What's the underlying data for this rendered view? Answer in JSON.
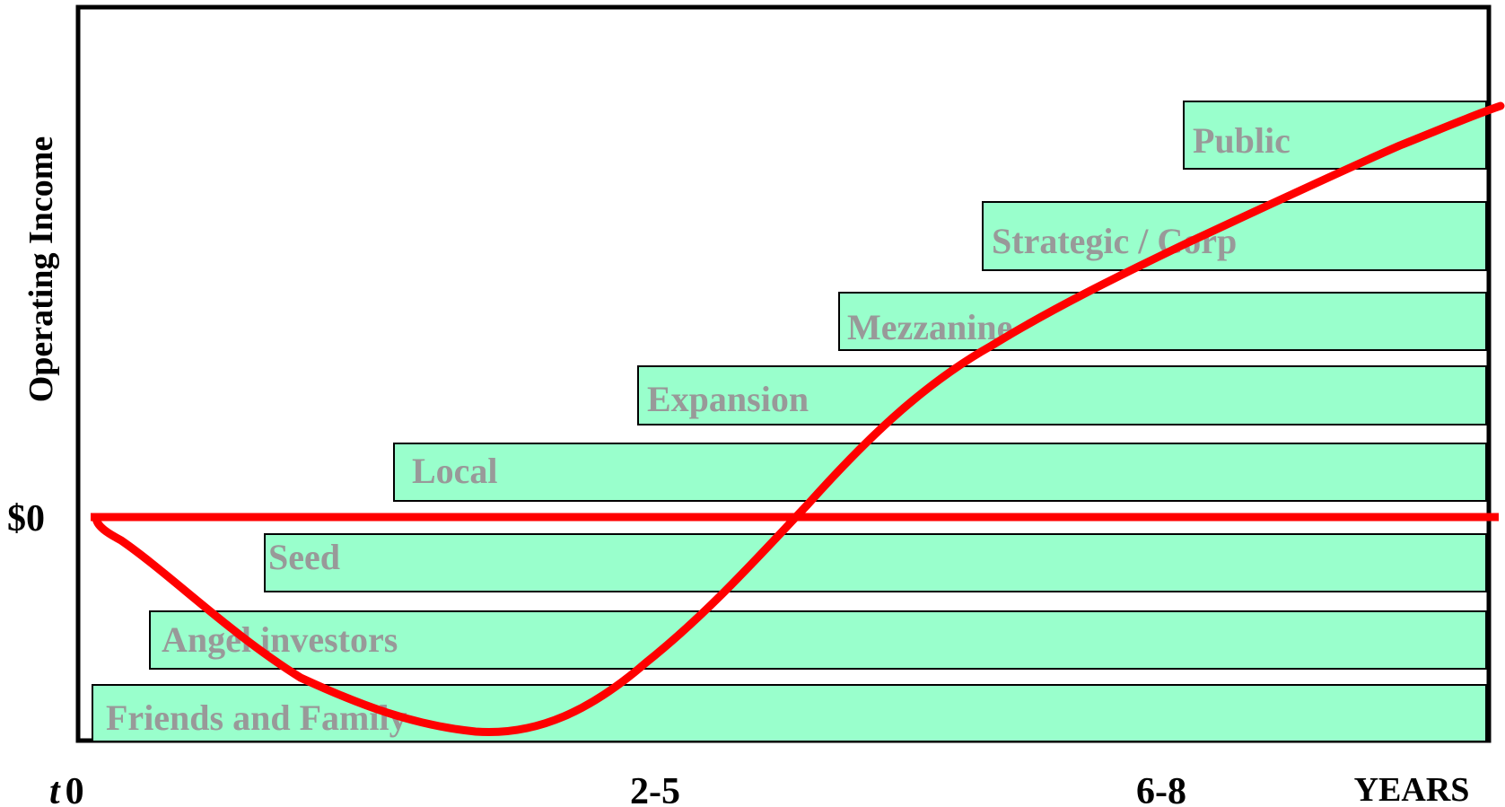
{
  "colors": {
    "bar_fill": "#99ffcc",
    "bar_text": "#999999",
    "curve": "#ff0000",
    "frame": "#000000"
  },
  "axes": {
    "y_label": "Operating Income",
    "zero_label": "$0",
    "x_start_italic": "t",
    "x_start_number": "0",
    "x_mid": "2-5",
    "x_late": "6-8",
    "x_end": "YEARS"
  },
  "stages": [
    {
      "label": "Public"
    },
    {
      "label": "Strategic / Corp"
    },
    {
      "label": "Mezzanine"
    },
    {
      "label": "Expansion"
    },
    {
      "label": "Local"
    },
    {
      "label": "Seed"
    },
    {
      "label": "Angel investors"
    },
    {
      "label": "Friends and Family"
    }
  ]
}
